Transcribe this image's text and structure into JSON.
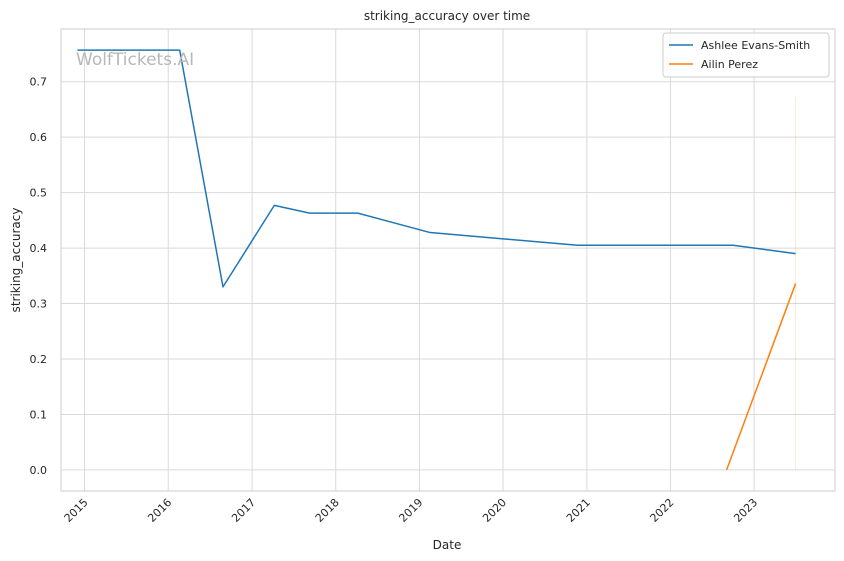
{
  "chart_data": {
    "type": "line",
    "title": "striking_accuracy over time",
    "xlabel": "Date",
    "ylabel": "striking_accuracy",
    "watermark": "WolfTickets.AI",
    "x_ticks": [
      "2015",
      "2016",
      "2017",
      "2018",
      "2019",
      "2020",
      "2021",
      "2022",
      "2023"
    ],
    "y_ticks": [
      "0.0",
      "0.1",
      "0.2",
      "0.3",
      "0.4",
      "0.5",
      "0.6",
      "0.7"
    ],
    "xlim": [
      "2014-09-20",
      "2023-12-20"
    ],
    "ylim": [
      -0.038,
      0.795
    ],
    "grid": true,
    "legend_position": "top-right",
    "series": [
      {
        "name": "Ashlee Evans-Smith",
        "color": "#1f77b4",
        "points": [
          {
            "x": "2014-12-01",
            "y": 0.757
          },
          {
            "x": "2016-02-20",
            "y": 0.757
          },
          {
            "x": "2016-08-27",
            "y": 0.33
          },
          {
            "x": "2017-04-08",
            "y": 0.477
          },
          {
            "x": "2017-09-09",
            "y": 0.463
          },
          {
            "x": "2018-04-07",
            "y": 0.463
          },
          {
            "x": "2019-02-17",
            "y": 0.428
          },
          {
            "x": "2020-11-21",
            "y": 0.405
          },
          {
            "x": "2022-10-01",
            "y": 0.405
          },
          {
            "x": "2023-07-01",
            "y": 0.39
          }
        ]
      },
      {
        "name": "Ailin Perez",
        "color": "#ff7f0e",
        "points": [
          {
            "x": "2022-09-03",
            "y": 0.0
          },
          {
            "x": "2023-07-01",
            "y": 0.336
          }
        ]
      }
    ],
    "faint_line": {
      "x": "2023-07-01",
      "y0": 0.0,
      "y1": 0.672,
      "color": "#ff7f0e"
    }
  }
}
